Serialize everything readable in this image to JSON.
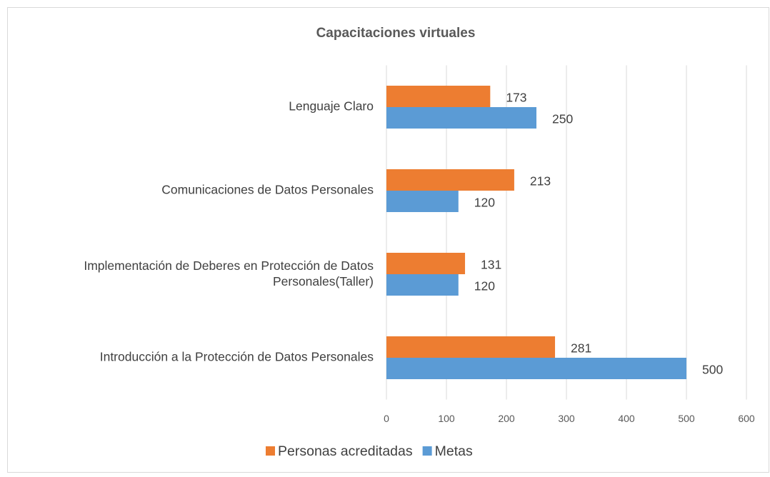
{
  "chart_data": {
    "type": "barh",
    "title": "Capacitaciones virtuales",
    "categories": [
      "Lenguaje Claro",
      "Comunicaciones de Datos Personales",
      "Implementación de Deberes en Protección de Datos Personales(Taller)",
      "Introducción a la Protección de Datos Personales"
    ],
    "series": [
      {
        "name": "Personas acreditadas",
        "color": "#ed7d31",
        "values": [
          173,
          213,
          131,
          281
        ]
      },
      {
        "name": "Metas",
        "color": "#5b9bd5",
        "values": [
          250,
          120,
          120,
          500
        ]
      }
    ],
    "xlim": [
      0,
      600
    ],
    "xticks": [
      0,
      100,
      200,
      300,
      400,
      500,
      600
    ],
    "grid": true,
    "legend": "bottom"
  }
}
